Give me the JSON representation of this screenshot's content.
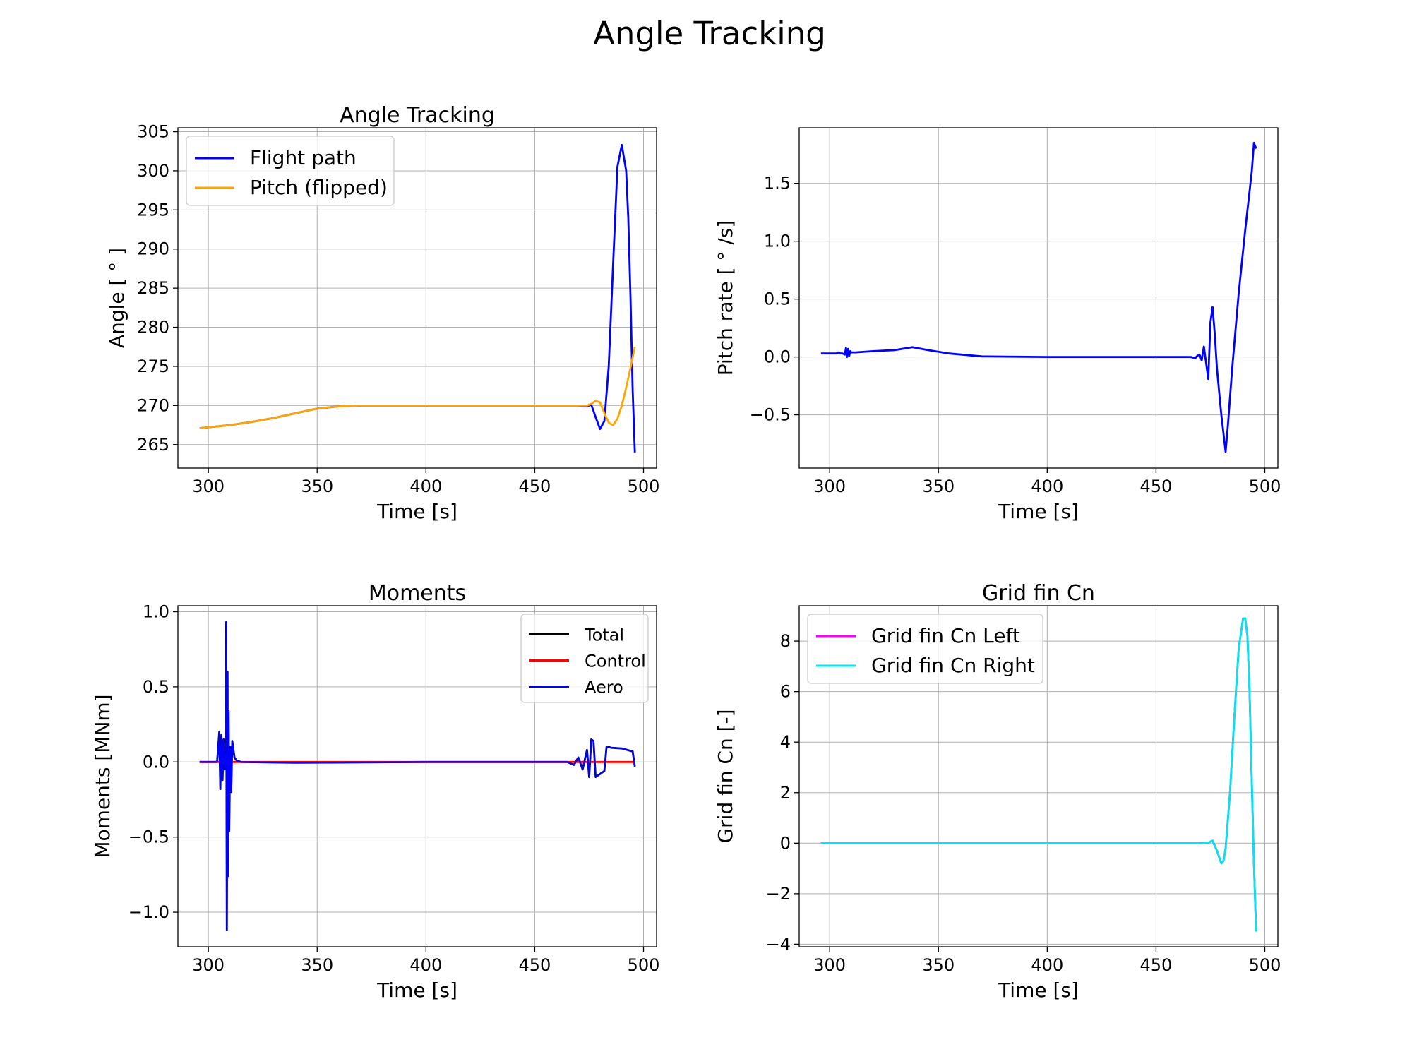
{
  "figure": {
    "title": "Angle Tracking",
    "colors": {
      "blue": "#0000ff",
      "orange": "#ffa500",
      "black": "#000000",
      "red": "#ff0000",
      "magenta": "#ff00ff",
      "cyan": "#00e5ee"
    }
  },
  "chart_data": [
    {
      "type": "line",
      "title": "Angle Tracking",
      "xlabel": "Time [s]",
      "ylabel": "Angle [$^\\circ$]",
      "ylabel_text": "Angle [ ° ]",
      "xlim": [
        286,
        506
      ],
      "ylim": [
        262,
        305.5
      ],
      "xticks": [
        300,
        350,
        400,
        450,
        500
      ],
      "yticks": [
        265,
        270,
        275,
        280,
        285,
        290,
        295,
        300,
        305
      ],
      "grid": true,
      "legend": "upper-left",
      "series": [
        {
          "name": "Flight path",
          "color": "#0000ff",
          "x": [
            296,
            310,
            320,
            330,
            340,
            350,
            360,
            370,
            400,
            450,
            470,
            474,
            476,
            478,
            480,
            482,
            484,
            486,
            488,
            490,
            492,
            493,
            494,
            495,
            496
          ],
          "y": [
            267.1,
            267.5,
            267.9,
            268.4,
            269.0,
            269.6,
            269.9,
            270.0,
            270.0,
            270.0,
            270.0,
            269.9,
            270.1,
            268.5,
            267.0,
            268.0,
            275.0,
            288.0,
            300.5,
            303.3,
            300.0,
            294.0,
            284.0,
            272.0,
            264.0
          ]
        },
        {
          "name": "Pitch (flipped)",
          "color": "#ffa500",
          "x": [
            296,
            310,
            320,
            330,
            340,
            350,
            360,
            370,
            400,
            450,
            470,
            474,
            476,
            478,
            480,
            482,
            484,
            486,
            488,
            490,
            492,
            494,
            496
          ],
          "y": [
            267.1,
            267.5,
            267.9,
            268.4,
            269.0,
            269.6,
            269.9,
            270.0,
            270.0,
            270.0,
            270.0,
            270.0,
            270.2,
            270.6,
            270.4,
            269.0,
            267.8,
            267.5,
            268.3,
            270.0,
            272.3,
            274.8,
            277.5
          ]
        }
      ]
    },
    {
      "type": "line",
      "title": "",
      "xlabel": "Time [s]",
      "ylabel": "Pitch rate [$^\\circ$/s]",
      "ylabel_text": "Pitch rate [ ° /s]",
      "xlim": [
        286,
        506
      ],
      "ylim": [
        -0.96,
        1.98
      ],
      "xticks": [
        300,
        350,
        400,
        450,
        500
      ],
      "yticks": [
        -0.5,
        0.0,
        0.5,
        1.0,
        1.5
      ],
      "ytick_labels": [
        "−0.5",
        "0.0",
        "0.5",
        "1.0",
        "1.5"
      ],
      "grid": true,
      "series": [
        {
          "color": "#0000ff",
          "x": [
            296,
            300,
            303,
            304,
            305,
            306,
            307,
            307.5,
            308,
            308.5,
            309,
            309.5,
            310,
            312,
            320,
            330,
            338,
            345,
            355,
            370,
            400,
            450,
            466,
            468,
            469,
            470,
            471,
            472,
            473,
            474,
            475,
            476,
            477,
            478,
            480,
            482,
            483,
            485,
            488,
            491,
            494,
            495,
            496
          ],
          "y": [
            0.03,
            0.03,
            0.03,
            0.04,
            0.03,
            0.03,
            0.02,
            0.08,
            0.0,
            0.07,
            0.01,
            0.05,
            0.04,
            0.04,
            0.05,
            0.06,
            0.085,
            0.06,
            0.03,
            0.005,
            0.0,
            0.0,
            0.0,
            -0.01,
            0.01,
            0.02,
            -0.03,
            0.09,
            -0.05,
            -0.19,
            0.3,
            0.43,
            0.2,
            -0.1,
            -0.5,
            -0.82,
            -0.6,
            -0.1,
            0.55,
            1.1,
            1.6,
            1.85,
            1.8
          ]
        }
      ]
    },
    {
      "type": "line",
      "title": "Moments",
      "xlabel": "Time [s]",
      "ylabel": "Moments [MNm]",
      "xlim": [
        286,
        506
      ],
      "ylim": [
        -1.23,
        1.04
      ],
      "xticks": [
        300,
        350,
        400,
        450,
        500
      ],
      "yticks": [
        -1.0,
        -0.5,
        0.0,
        0.5,
        1.0
      ],
      "ytick_labels": [
        "−1.0",
        "−0.5",
        "0.0",
        "0.5",
        "1.0"
      ],
      "grid": true,
      "legend": "upper-right",
      "series": [
        {
          "name": "Total",
          "color": "#000000",
          "x": [
            296,
            304,
            305,
            305.5,
            306,
            306.5,
            307,
            307.5,
            308,
            308.2,
            308.5,
            308.8,
            309,
            309.3,
            309.6,
            310,
            310.5,
            311,
            312,
            313,
            315,
            340,
            400,
            465,
            468,
            470,
            472,
            474,
            475,
            476,
            477,
            478,
            480,
            482,
            483,
            484,
            485,
            490,
            495,
            496
          ],
          "y": [
            0.0,
            0.0,
            0.2,
            -0.18,
            0.18,
            -0.12,
            0.15,
            -0.05,
            0.05,
            0.93,
            -1.12,
            0.6,
            -0.76,
            0.34,
            -0.46,
            0.1,
            -0.2,
            0.14,
            0.03,
            0.01,
            0.0,
            -0.005,
            0.0,
            0.0,
            -0.02,
            0.03,
            -0.05,
            0.08,
            -0.1,
            0.15,
            0.14,
            -0.1,
            -0.08,
            -0.06,
            0.1,
            0.1,
            0.095,
            0.09,
            0.07,
            -0.03
          ]
        },
        {
          "name": "Control",
          "color": "#ff0000",
          "x": [
            296,
            496
          ],
          "y": [
            0.0,
            0.0
          ]
        },
        {
          "name": "Aero",
          "color": "#0000ff",
          "x": [
            296,
            304,
            305,
            305.5,
            306,
            306.5,
            307,
            307.5,
            308,
            308.2,
            308.5,
            308.8,
            309,
            309.3,
            309.6,
            310,
            310.5,
            311,
            312,
            313,
            315,
            340,
            400,
            465,
            468,
            470,
            472,
            474,
            475,
            476,
            477,
            478,
            480,
            482,
            483,
            484,
            485,
            490,
            495,
            496
          ],
          "y": [
            0.0,
            0.0,
            0.2,
            -0.18,
            0.18,
            -0.12,
            0.15,
            -0.05,
            0.05,
            0.93,
            -1.12,
            0.6,
            -0.76,
            0.34,
            -0.46,
            0.1,
            -0.2,
            0.14,
            0.03,
            0.01,
            0.0,
            -0.005,
            0.0,
            0.0,
            -0.02,
            0.03,
            -0.05,
            0.08,
            -0.1,
            0.15,
            0.14,
            -0.1,
            -0.08,
            -0.06,
            0.1,
            0.1,
            0.095,
            0.09,
            0.07,
            -0.03
          ]
        }
      ]
    },
    {
      "type": "line",
      "title": "Grid fin Cn",
      "xlabel": "Time [s]",
      "ylabel": "Grid fin Cn [-]",
      "xlim": [
        286,
        506
      ],
      "ylim": [
        -4.1,
        9.4
      ],
      "xticks": [
        300,
        350,
        400,
        450,
        500
      ],
      "yticks": [
        -4,
        -2,
        0,
        2,
        4,
        6,
        8
      ],
      "ytick_labels": [
        "−4",
        "−2",
        "0",
        "2",
        "4",
        "6",
        "8"
      ],
      "grid": true,
      "legend": "upper-left",
      "series": [
        {
          "name": "Grid fin Cn Left",
          "color": "#ff00ff",
          "x": [
            296,
            400,
            470,
            474,
            476,
            478,
            480,
            481,
            482,
            484,
            486,
            488,
            490,
            491,
            492,
            493,
            494,
            495,
            496
          ],
          "y": [
            0.0,
            0.0,
            0.0,
            0.02,
            0.1,
            -0.3,
            -0.8,
            -0.7,
            -0.2,
            2.0,
            5.0,
            7.7,
            8.9,
            8.9,
            8.2,
            6.0,
            2.5,
            -0.8,
            -3.5
          ]
        },
        {
          "name": "Grid fin Cn Right",
          "color": "#00e5ee",
          "x": [
            296,
            400,
            470,
            474,
            476,
            478,
            480,
            481,
            482,
            484,
            486,
            488,
            490,
            491,
            492,
            493,
            494,
            495,
            496
          ],
          "y": [
            0.0,
            0.0,
            0.0,
            0.02,
            0.1,
            -0.3,
            -0.8,
            -0.7,
            -0.2,
            2.0,
            5.0,
            7.7,
            8.9,
            8.9,
            8.2,
            6.0,
            2.5,
            -0.8,
            -3.5
          ]
        }
      ]
    }
  ]
}
